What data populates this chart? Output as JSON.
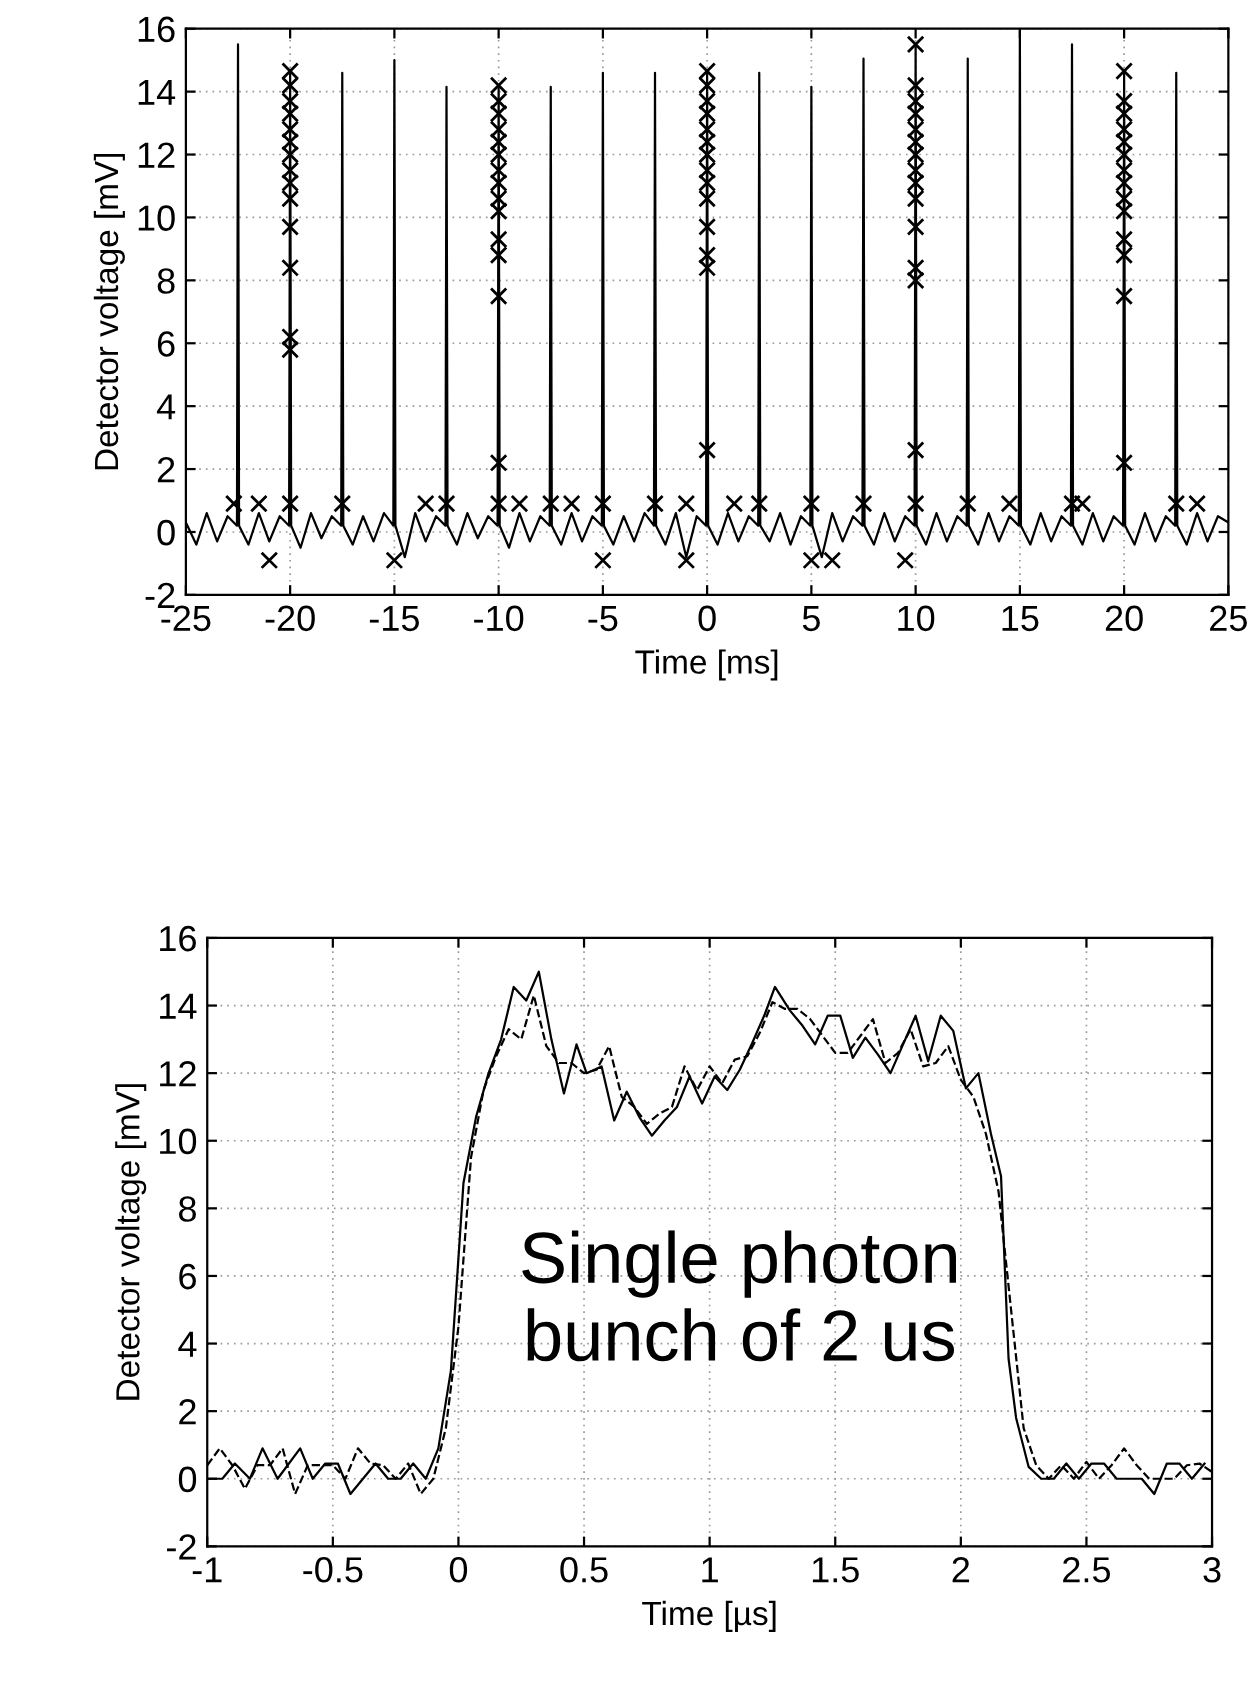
{
  "chart_data": [
    {
      "type": "line",
      "xlabel": "Time [ms]",
      "ylabel": "Detector voltage [mV]",
      "xlim": [
        -25,
        25
      ],
      "ylim": [
        -2,
        16
      ],
      "xticks": [
        -25,
        -20,
        -15,
        -10,
        -5,
        0,
        5,
        10,
        15,
        20,
        25
      ],
      "yticks": [
        -2,
        0,
        2,
        4,
        6,
        8,
        10,
        12,
        14,
        16
      ],
      "grid": true,
      "legend": false,
      "series": [
        {
          "type": "line",
          "color": "#000000",
          "marker": "none",
          "line_style": "solid",
          "x": [
            -25,
            -24.5,
            -24,
            -23.5,
            -23,
            -22.55,
            -22.5,
            -22.45,
            -22,
            -21.5,
            -21,
            -20.5,
            -20.05,
            -20,
            -19.95,
            -19.5,
            -19,
            -18.5,
            -18,
            -17.55,
            -17.5,
            -17.45,
            -17,
            -16.5,
            -16,
            -15.5,
            -15.05,
            -15,
            -14.95,
            -14.5,
            -14,
            -13.5,
            -13,
            -12.55,
            -12.5,
            -12.45,
            -12,
            -11.5,
            -11,
            -10.5,
            -10.05,
            -10,
            -9.95,
            -9.5,
            -9,
            -8.5,
            -8,
            -7.55,
            -7.5,
            -7.45,
            -7,
            -6.5,
            -6,
            -5.5,
            -5.05,
            -5,
            -4.95,
            -4.5,
            -4,
            -3.5,
            -3,
            -2.55,
            -2.5,
            -2.45,
            -2,
            -1.5,
            -1,
            -0.5,
            -0.05,
            0,
            0.05,
            0.5,
            1,
            1.5,
            2,
            2.45,
            2.5,
            2.55,
            3,
            3.5,
            4,
            4.5,
            4.95,
            5,
            5.05,
            5.5,
            6,
            6.5,
            7,
            7.45,
            7.5,
            7.55,
            8,
            8.5,
            9,
            9.5,
            9.95,
            10,
            10.05,
            10.5,
            11,
            11.5,
            12,
            12.45,
            12.5,
            12.55,
            13,
            13.5,
            14,
            14.5,
            14.95,
            15,
            15.05,
            15.5,
            16,
            16.5,
            17,
            17.45,
            17.5,
            17.55,
            18,
            18.5,
            19,
            19.5,
            19.95,
            20,
            20.05,
            20.5,
            21,
            21.5,
            22,
            22.45,
            22.5,
            22.55,
            23,
            23.5,
            24,
            24.5,
            25
          ],
          "values": [
            0.3,
            -0.4,
            0.6,
            -0.3,
            0.5,
            0.2,
            15.5,
            0.2,
            -0.4,
            0.6,
            -0.3,
            0.5,
            0.2,
            14.65,
            0.2,
            -0.5,
            0.6,
            -0.2,
            0.5,
            0.2,
            14.6,
            0.2,
            -0.4,
            0.5,
            -0.3,
            0.6,
            0.2,
            15.0,
            0.2,
            -0.8,
            0.6,
            -0.3,
            0.5,
            0.2,
            14.15,
            0.2,
            -0.4,
            0.6,
            -0.2,
            0.5,
            0.2,
            14.2,
            0.2,
            -0.5,
            0.6,
            -0.3,
            0.5,
            0.2,
            14.15,
            0.2,
            -0.4,
            0.6,
            -0.3,
            0.5,
            0.2,
            14.6,
            0.2,
            -0.4,
            0.5,
            -0.3,
            0.6,
            0.2,
            14.6,
            0.2,
            -0.4,
            0.6,
            -0.8,
            0.5,
            0.2,
            14.65,
            0.2,
            -0.4,
            0.6,
            -0.3,
            0.5,
            0.2,
            14.6,
            0.2,
            -0.3,
            0.6,
            -0.4,
            0.5,
            0.2,
            14.15,
            0.2,
            -0.8,
            0.6,
            -0.3,
            0.5,
            0.2,
            15.05,
            0.2,
            -0.4,
            0.6,
            -0.3,
            0.5,
            0.2,
            15.5,
            0.2,
            -0.4,
            0.6,
            -0.3,
            0.5,
            0.2,
            15.05,
            0.2,
            -0.4,
            0.6,
            -0.3,
            0.5,
            0.2,
            16.0,
            0.2,
            -0.4,
            0.6,
            -0.3,
            0.5,
            0.2,
            15.5,
            0.2,
            -0.4,
            0.6,
            -0.3,
            0.5,
            0.2,
            14.65,
            0.2,
            -0.4,
            0.6,
            -0.3,
            0.5,
            0.2,
            14.6,
            0.2,
            -0.4,
            0.6,
            -0.3,
            0.5,
            0.3
          ]
        },
        {
          "type": "scatter",
          "color": "#000000",
          "marker": "cross",
          "x": [
            -20,
            -20,
            -20,
            -20,
            -20,
            -20,
            -20,
            -20,
            -20,
            -20,
            -20,
            -20,
            -20,
            -20,
            -10,
            -10,
            -10,
            -10,
            -10,
            -10,
            -10,
            -10,
            -10,
            -10,
            -10,
            -10,
            -10,
            -10,
            0,
            0,
            0,
            0,
            0,
            0,
            0,
            0,
            0,
            0,
            0,
            0,
            0,
            0,
            10,
            10,
            10,
            10,
            10,
            10,
            10,
            10,
            10,
            10,
            10,
            10,
            10,
            10,
            20,
            20,
            20,
            20,
            20,
            20,
            20,
            20,
            20,
            20,
            20,
            20,
            20,
            20,
            -22.7,
            -21.5,
            -20,
            -17.5,
            -13.5,
            -12.5,
            -10,
            -9,
            -7.5,
            -6.5,
            -5,
            -2.5,
            -1,
            1.3,
            2.5,
            5,
            7.5,
            10,
            12.5,
            14.5,
            17.5,
            18,
            22.5,
            23.5,
            -21,
            -15,
            -5,
            -1,
            5,
            6,
            9.5
          ],
          "values": [
            14.65,
            14.2,
            13.7,
            13.3,
            12.8,
            12.4,
            12.0,
            11.5,
            11.1,
            10.6,
            9.7,
            8.4,
            6.2,
            5.8,
            14.2,
            13.7,
            13.3,
            12.8,
            12.4,
            12.0,
            11.5,
            11.1,
            10.6,
            10.2,
            9.3,
            8.8,
            7.5,
            2.2,
            14.65,
            14.2,
            13.7,
            13.3,
            12.8,
            12.4,
            12.0,
            11.5,
            11.1,
            10.6,
            9.7,
            8.8,
            8.4,
            2.6,
            15.5,
            14.2,
            13.7,
            13.3,
            12.8,
            12.4,
            12.0,
            11.5,
            11.1,
            10.6,
            9.7,
            8.4,
            8.0,
            2.6,
            14.65,
            13.7,
            13.3,
            12.8,
            12.4,
            12.0,
            11.5,
            11.1,
            10.6,
            10.2,
            9.3,
            8.8,
            7.5,
            2.2,
            0.9,
            0.9,
            0.9,
            0.9,
            0.9,
            0.9,
            0.9,
            0.9,
            0.9,
            0.9,
            0.9,
            0.9,
            0.9,
            0.9,
            0.9,
            0.9,
            0.9,
            0.9,
            0.9,
            0.9,
            0.9,
            0.9,
            0.9,
            0.9,
            -0.9,
            -0.9,
            -0.9,
            -0.9,
            -0.9,
            -0.9,
            -0.9
          ]
        }
      ]
    },
    {
      "type": "line",
      "xlabel": "Time [µs]",
      "ylabel": "Detector voltage [mV]",
      "xlim": [
        -1,
        3
      ],
      "ylim": [
        -2,
        16
      ],
      "xticks": [
        -1,
        -0.5,
        0,
        0.5,
        1,
        1.5,
        2,
        2.5,
        3
      ],
      "yticks": [
        -2,
        0,
        2,
        4,
        6,
        8,
        10,
        12,
        14,
        16
      ],
      "grid": true,
      "legend": false,
      "marker": "none",
      "annotations": [
        "Single photon\nbunch of 2 us"
      ],
      "series": [
        {
          "color": "#000000",
          "line_style": "solid",
          "x": [
            -1.0,
            -0.94,
            -0.89,
            -0.83,
            -0.78,
            -0.72,
            -0.63,
            -0.58,
            -0.53,
            -0.48,
            -0.43,
            -0.38,
            -0.33,
            -0.28,
            -0.23,
            -0.18,
            -0.13,
            -0.08,
            -0.03,
            0.02,
            0.07,
            0.12,
            0.17,
            0.22,
            0.27,
            0.32,
            0.37,
            0.42,
            0.47,
            0.51,
            0.57,
            0.62,
            0.67,
            0.72,
            0.77,
            0.82,
            0.87,
            0.92,
            0.97,
            1.02,
            1.07,
            1.12,
            1.17,
            1.22,
            1.26,
            1.32,
            1.37,
            1.42,
            1.47,
            1.52,
            1.57,
            1.62,
            1.67,
            1.72,
            1.77,
            1.82,
            1.87,
            1.92,
            1.97,
            2.02,
            2.07,
            2.12,
            2.16,
            2.19,
            2.22,
            2.27,
            2.32,
            2.37,
            2.42,
            2.47,
            2.52,
            2.57,
            2.62,
            2.67,
            2.72,
            2.77,
            2.82,
            2.87,
            2.92,
            2.97
          ],
          "values": [
            0,
            0,
            0.45,
            0,
            0.9,
            0,
            0.9,
            0,
            0.45,
            0.45,
            -0.45,
            0,
            0.45,
            0,
            0,
            0.45,
            0,
            0.9,
            3.2,
            8.75,
            10.7,
            12.0,
            13.0,
            14.55,
            14.15,
            15.0,
            13.0,
            11.4,
            12.85,
            12.0,
            12.2,
            10.6,
            11.45,
            10.7,
            10.15,
            10.6,
            11.0,
            11.9,
            11.1,
            11.9,
            11.5,
            12.1,
            12.9,
            13.75,
            14.55,
            13.85,
            13.4,
            12.85,
            13.7,
            13.7,
            12.45,
            13.05,
            12.55,
            12.0,
            12.85,
            13.7,
            12.35,
            13.7,
            13.25,
            11.55,
            12.0,
            10.2,
            8.95,
            3.55,
            1.8,
            0.35,
            0,
            0,
            0.45,
            0,
            0.45,
            0.45,
            0,
            0,
            0,
            -0.45,
            0.45,
            0.45,
            0,
            0.45
          ]
        },
        {
          "color": "#000000",
          "line_style": "dashed",
          "x": [
            -1.0,
            -0.95,
            -0.9,
            -0.85,
            -0.8,
            -0.75,
            -0.7,
            -0.65,
            -0.6,
            -0.55,
            -0.5,
            -0.45,
            -0.4,
            -0.35,
            -0.3,
            -0.25,
            -0.2,
            -0.15,
            -0.1,
            -0.05,
            0.0,
            0.05,
            0.1,
            0.15,
            0.2,
            0.25,
            0.3,
            0.35,
            0.4,
            0.45,
            0.5,
            0.55,
            0.6,
            0.65,
            0.7,
            0.75,
            0.8,
            0.85,
            0.9,
            0.95,
            1.0,
            1.05,
            1.1,
            1.15,
            1.2,
            1.25,
            1.3,
            1.35,
            1.4,
            1.45,
            1.5,
            1.55,
            1.6,
            1.65,
            1.7,
            1.75,
            1.8,
            1.85,
            1.9,
            1.95,
            2.0,
            2.05,
            2.1,
            2.15,
            2.2,
            2.25,
            2.3,
            2.35,
            2.4,
            2.45,
            2.5,
            2.55,
            2.6,
            2.65,
            2.7,
            2.75,
            2.8,
            2.85,
            2.9,
            2.95,
            3.0
          ],
          "values": [
            0.4,
            0.9,
            0.4,
            -0.3,
            0.4,
            0.4,
            0.9,
            -0.45,
            0.4,
            0.4,
            0.4,
            0.0,
            0.9,
            0.45,
            0.4,
            0.0,
            0.45,
            -0.45,
            0.0,
            1.5,
            4.5,
            9.5,
            11.5,
            12.5,
            13.3,
            13.0,
            14.3,
            12.8,
            12.3,
            12.3,
            12.0,
            12.1,
            12.8,
            11.3,
            11.0,
            10.5,
            10.8,
            11.0,
            12.2,
            11.5,
            12.2,
            11.7,
            12.4,
            12.5,
            13.2,
            14.1,
            13.9,
            13.9,
            13.6,
            13.1,
            12.6,
            12.6,
            13.1,
            13.6,
            12.3,
            12.6,
            13.3,
            12.2,
            12.3,
            12.8,
            11.8,
            11.3,
            10.2,
            8.5,
            5.0,
            1.5,
            0.4,
            0.0,
            0.4,
            0.0,
            0.5,
            0.0,
            0.4,
            0.9,
            0.4,
            0.0,
            0.0,
            0.0,
            0.4,
            0.45,
            0.2
          ]
        }
      ]
    }
  ]
}
